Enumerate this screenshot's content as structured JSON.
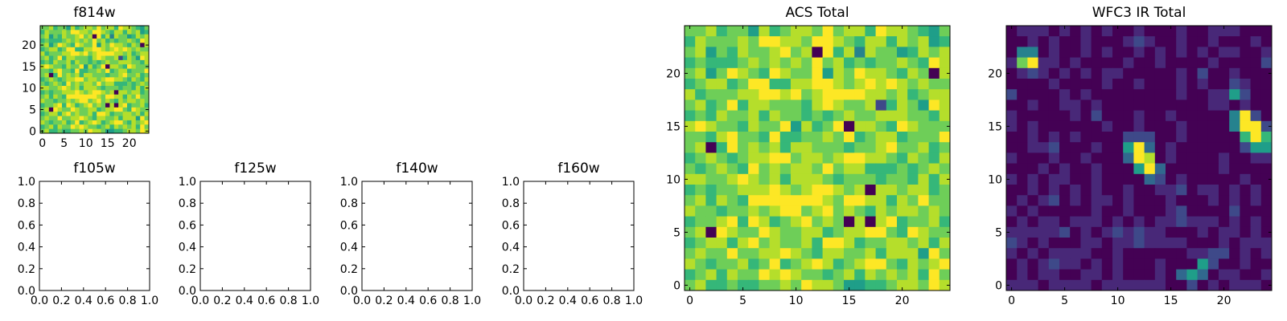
{
  "colormap": [
    "#440154",
    "#482878",
    "#3e4989",
    "#31688e",
    "#26828e",
    "#1f9e89",
    "#35b779",
    "#6ece58",
    "#b5de2b",
    "#fde725"
  ],
  "chart_data": [
    {
      "type": "heatmap",
      "title": "f814w",
      "xlim": [
        -0.5,
        24.5
      ],
      "ylim": [
        -0.5,
        24.5
      ],
      "xticks": [
        0,
        5,
        10,
        15,
        20
      ],
      "yticks": [
        0,
        5,
        10,
        15,
        20
      ],
      "rows_from_top": "acs"
    },
    {
      "type": "empty",
      "title": "f105w",
      "xlim": [
        0,
        1
      ],
      "ylim": [
        0,
        1
      ],
      "xticks": [
        "0.0",
        "0.2",
        "0.4",
        "0.6",
        "0.8",
        "1.0"
      ],
      "yticks": [
        "0.0",
        "0.2",
        "0.4",
        "0.6",
        "0.8",
        "1.0"
      ]
    },
    {
      "type": "empty",
      "title": "f125w",
      "xlim": [
        0,
        1
      ],
      "ylim": [
        0,
        1
      ],
      "xticks": [
        "0.0",
        "0.2",
        "0.4",
        "0.6",
        "0.8",
        "1.0"
      ],
      "yticks": [
        "0.0",
        "0.2",
        "0.4",
        "0.6",
        "0.8",
        "1.0"
      ]
    },
    {
      "type": "empty",
      "title": "f140w",
      "xlim": [
        0,
        1
      ],
      "ylim": [
        0,
        1
      ],
      "xticks": [
        "0.0",
        "0.2",
        "0.4",
        "0.6",
        "0.8",
        "1.0"
      ],
      "yticks": [
        "0.0",
        "0.2",
        "0.4",
        "0.6",
        "0.8",
        "1.0"
      ]
    },
    {
      "type": "empty",
      "title": "f160w",
      "xlim": [
        0,
        1
      ],
      "ylim": [
        0,
        1
      ],
      "xticks": [
        "0.0",
        "0.2",
        "0.4",
        "0.6",
        "0.8",
        "1.0"
      ],
      "yticks": [
        "0.0",
        "0.2",
        "0.4",
        "0.6",
        "0.8",
        "1.0"
      ]
    },
    {
      "type": "heatmap",
      "title": "ACS Total",
      "xlim": [
        -0.5,
        24.5
      ],
      "ylim": [
        -0.5,
        24.5
      ],
      "xticks": [
        0,
        5,
        10,
        15,
        20
      ],
      "yticks": [
        0,
        5,
        10,
        15,
        20
      ],
      "rows_from_top": "acs"
    },
    {
      "type": "heatmap",
      "title": "WFC3 IR Total",
      "xlim": [
        -0.5,
        24.5
      ],
      "ylim": [
        -0.5,
        24.5
      ],
      "xticks": [
        0,
        5,
        10,
        15,
        20
      ],
      "yticks": [
        0,
        5,
        10,
        15,
        20
      ],
      "rows_from_top": "wfc3"
    }
  ],
  "grids": {
    "value_scale": "0-9 (relative intensity, viridis)",
    "acs": [
      "7786775867887978869887657",
      "6877787998879987688687856",
      "7857687789780968487756878",
      "6766678787879786767787698",
      "7857987698779587988768708",
      "6788679966889987898987877",
      "8677788998978999988786788",
      "7867968877768987782687598",
      "6768778687767678778887768",
      "8987768779586790887698777",
      "7768977696677879678867779",
      "7806978786887776778977867",
      "6787678899788789988768768",
      "7678769787887978866676787",
      "8877898786888767776776868",
      "6767788898789987808878867",
      "7868769999999879988687977",
      "8776778789978978768788787",
      "6778969867897870808967786",
      "7809877987788678899769877",
      "6788689787786998677887868",
      "7877977889876887786888597",
      "8767786796789867899768789",
      "6786877989877678687878697",
      "7866766778798875566788798"
    ],
    "wfc3": [
      "0111010101001000100111000",
      "0010100100012100100100010",
      "0440100101001010101011001",
      "1791101000010010000100002",
      "0121010101100000102001000",
      "0000100001001000101002100",
      "2000010100000000100115200",
      "0010011010000000000110100",
      "1000001020001001000004920",
      "1010000001001000100004992",
      "0010101000022200100000696",
      "0011200010059301000000255",
      "1000100100039801000010011",
      "0001010010005930000010000",
      "1010110010000320100000100",
      "0010101010010011201101010",
      "0101201011010001000101010",
      "1010000010010001200002000",
      "0101101110101011211101010",
      "1111120101212110001011010",
      "2101000110112111100010111",
      "1010111100100000011220101",
      "0101211010100010005200100",
      "0101100110100010353011001",
      "1110111101111110020101110"
    ]
  }
}
